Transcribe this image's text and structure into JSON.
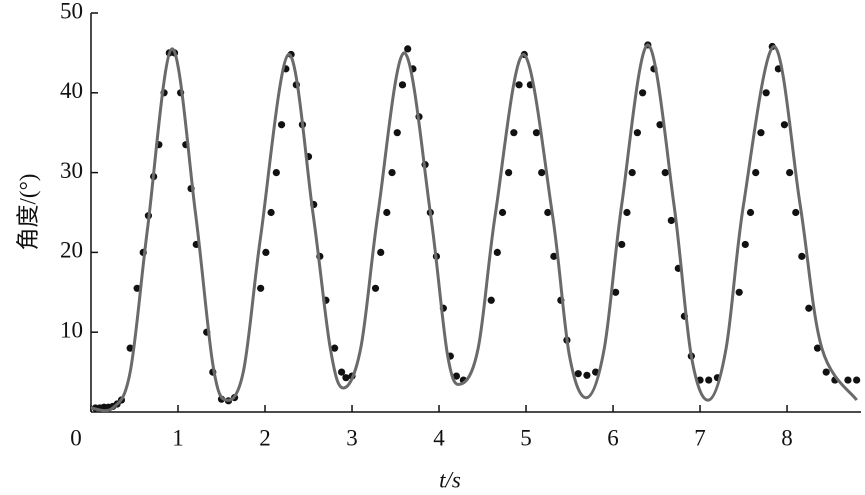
{
  "chart_data": {
    "type": "line",
    "y_label": "角度/(°)",
    "x_label": "t/s",
    "xlim": [
      0,
      8.85
    ],
    "ylim": [
      0,
      50
    ],
    "xticks": [
      0,
      1,
      2,
      3,
      4,
      5,
      6,
      7,
      8
    ],
    "yticks": [
      10,
      20,
      30,
      40,
      50
    ],
    "series": [
      {
        "type": "scatter",
        "color": "#111111",
        "x": [
          0.05,
          0.1,
          0.15,
          0.2,
          0.25,
          0.3,
          0.35,
          0.45,
          0.53,
          0.6,
          0.66,
          0.72,
          0.78,
          0.84,
          0.9,
          0.96,
          1.03,
          1.09,
          1.15,
          1.21,
          1.33,
          1.4,
          1.5,
          1.58,
          1.65,
          1.95,
          2.01,
          2.07,
          2.13,
          2.19,
          2.24,
          2.3,
          2.36,
          2.43,
          2.5,
          2.56,
          2.63,
          2.7,
          2.8,
          2.88,
          2.93,
          3.0,
          3.27,
          3.33,
          3.4,
          3.46,
          3.52,
          3.58,
          3.64,
          3.7,
          3.77,
          3.84,
          3.9,
          3.97,
          4.05,
          4.13,
          4.2,
          4.28,
          4.6,
          4.67,
          4.73,
          4.8,
          4.86,
          4.92,
          4.98,
          5.05,
          5.12,
          5.18,
          5.25,
          5.32,
          5.4,
          5.47,
          5.6,
          5.7,
          5.8,
          6.03,
          6.1,
          6.16,
          6.22,
          6.28,
          6.34,
          6.4,
          6.47,
          6.54,
          6.6,
          6.67,
          6.75,
          6.82,
          6.9,
          7.0,
          7.1,
          7.2,
          7.45,
          7.52,
          7.58,
          7.64,
          7.7,
          7.76,
          7.83,
          7.9,
          7.97,
          8.03,
          8.1,
          8.17,
          8.25,
          8.35,
          8.45,
          8.55,
          8.7,
          8.8
        ],
        "values": [
          0.5,
          0.5,
          0.6,
          0.6,
          0.7,
          1,
          1.5,
          8,
          15.5,
          20,
          24.6,
          29.5,
          33.5,
          40,
          45,
          45,
          40,
          33.5,
          28,
          21,
          10,
          5,
          1.6,
          1.4,
          1.8,
          15.5,
          20,
          25,
          30,
          36,
          43,
          44.8,
          41,
          36,
          32,
          26,
          19.5,
          14,
          8,
          5,
          4.3,
          4.5,
          15.5,
          20,
          25,
          30,
          35,
          41,
          45.5,
          43,
          37,
          31,
          25,
          19.5,
          13,
          7,
          4.5,
          4,
          14,
          20,
          25,
          30,
          35,
          41,
          44.8,
          41,
          35,
          30,
          25,
          19.5,
          14,
          9,
          4.8,
          4.6,
          5,
          15,
          21,
          25,
          30,
          35,
          40,
          46,
          43,
          36,
          30,
          24,
          18,
          12,
          7,
          4,
          4,
          4.3,
          15,
          21,
          25,
          30,
          35,
          40,
          45.8,
          43,
          36,
          30,
          25,
          19.5,
          13,
          8,
          5,
          4,
          4,
          4
        ]
      },
      {
        "type": "line",
        "color": "#6a6a6a",
        "x": [
          0,
          0.25,
          0.45,
          0.65,
          0.93,
          1.2,
          1.4,
          1.55,
          1.75,
          1.95,
          2.27,
          2.55,
          2.75,
          2.9,
          3.1,
          3.3,
          3.6,
          3.9,
          4.1,
          4.25,
          4.45,
          4.65,
          4.97,
          5.3,
          5.5,
          5.7,
          5.9,
          6.1,
          6.4,
          6.7,
          6.9,
          7.1,
          7.3,
          7.5,
          7.85,
          8.15,
          8.4,
          8.8
        ],
        "values": [
          0.5,
          0.5,
          5,
          23,
          45.5,
          25,
          6,
          1.5,
          5,
          22,
          44.8,
          25,
          8,
          3,
          8,
          25,
          45,
          25,
          7,
          3.5,
          8,
          25,
          44.8,
          25,
          7,
          1.8,
          8,
          26,
          46,
          26,
          7,
          1.5,
          8,
          26,
          45.8,
          26,
          8,
          1.5
        ]
      }
    ]
  }
}
